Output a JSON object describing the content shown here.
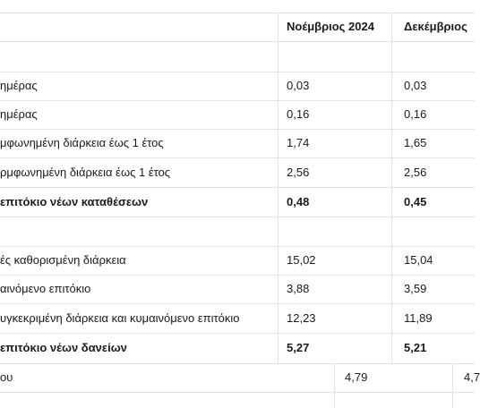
{
  "table": {
    "header": [
      "Νοέμβριος 2024",
      "Δεκέμβριος"
    ],
    "rows": [
      {
        "label": "ημέρας",
        "values": [
          "0,03",
          "0,03"
        ]
      },
      {
        "label": "ημέρας",
        "values": [
          "0,16",
          "0,16"
        ]
      },
      {
        "label": "μφωνημένη διάρκεια έως 1 έτος",
        "values": [
          "1,74",
          "1,65"
        ]
      },
      {
        "label": "ρμφωνημένη διάρκεια έως 1 έτος",
        "values": [
          "2,56",
          "2,56"
        ]
      },
      {
        "label": "επιτόκιο νέων καταθέσεων",
        "values": [
          "0,48",
          "0,45"
        ],
        "bold": true
      },
      {
        "label": "ές καθορισμένη διάρκεια",
        "values": [
          "15,02",
          "15,04"
        ]
      },
      {
        "label": "αινόμενο επιτόκιο",
        "values": [
          "3,88",
          "3,59"
        ]
      },
      {
        "label": "υγκεκριμένη διάρκεια και κυμαινόμενο επιτόκιο",
        "values": [
          "12,23",
          "11,89"
        ]
      },
      {
        "label": "επιτόκιο νέων δανείων",
        "values": [
          "5,27",
          "5,21"
        ],
        "bold": true
      },
      {
        "label": "ου",
        "values": [
          "4,79",
          "4,7"
        ]
      }
    ]
  }
}
